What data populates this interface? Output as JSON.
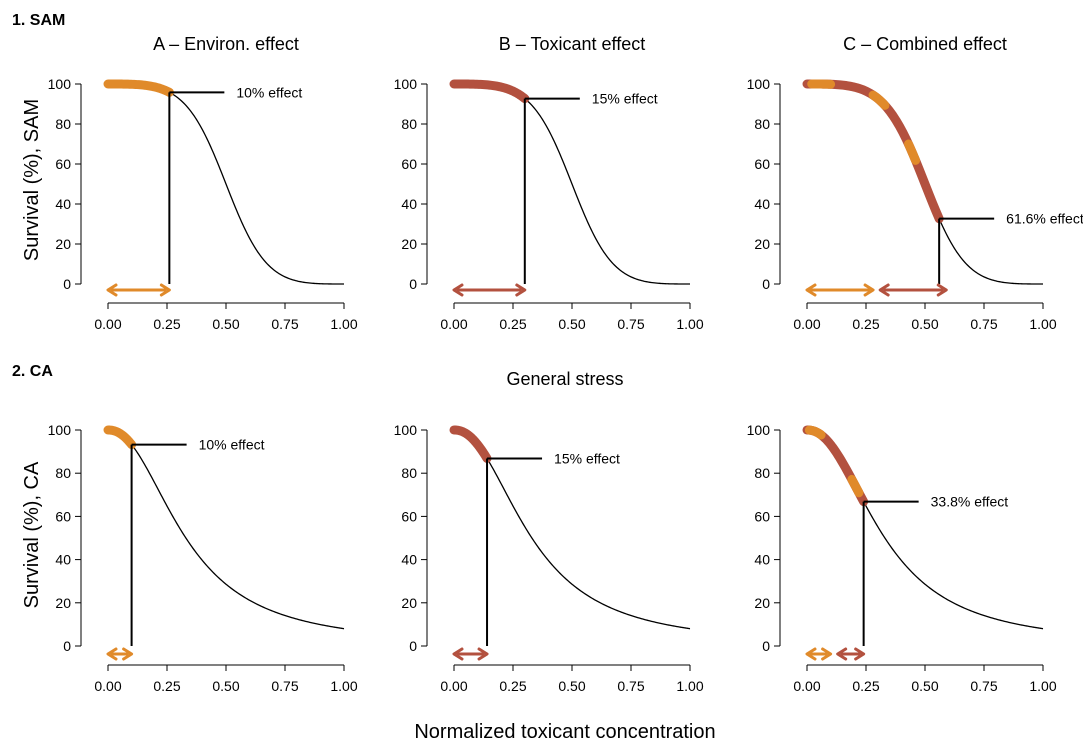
{
  "colors": {
    "env": "#E08A2A",
    "tox": "#B3513F",
    "row_label": "#B3513F",
    "ink": "#000000"
  },
  "figure": {
    "shared_xlabel": "Normalized toxicant concentration",
    "middle_label": "General stress"
  },
  "rows": [
    {
      "label": "1. SAM",
      "ylabel": "Survival (%), SAM"
    },
    {
      "label": "2. CA",
      "ylabel": "Survival (%), CA"
    }
  ],
  "chart_data": [
    {
      "id": "sam-a",
      "type": "line",
      "title": "A – Environ. effect",
      "xlabel": "",
      "ylabel": "Survival (%), SAM",
      "xlim": [
        0,
        1
      ],
      "ylim": [
        0,
        100
      ],
      "x_ticks": [
        "0.00",
        "0.25",
        "0.50",
        "0.75",
        "1.00"
      ],
      "y_ticks": [
        "0",
        "20",
        "40",
        "60",
        "80",
        "100"
      ],
      "curve_model": "sam",
      "x_at_effect": 0.26,
      "effect_label": "10% effect",
      "effect_y": 90,
      "segments": [
        {
          "from": 0,
          "to": 0.26,
          "color": "env"
        }
      ],
      "arrows": [
        {
          "from": 0,
          "to": 0.26,
          "color": "env"
        }
      ]
    },
    {
      "id": "sam-b",
      "type": "line",
      "title": "B – Toxicant effect",
      "xlabel": "",
      "ylabel": "",
      "xlim": [
        0,
        1
      ],
      "ylim": [
        0,
        100
      ],
      "x_ticks": [
        "0.00",
        "0.25",
        "0.50",
        "0.75",
        "1.00"
      ],
      "y_ticks": [
        "0",
        "20",
        "40",
        "60",
        "80",
        "100"
      ],
      "curve_model": "sam",
      "x_at_effect": 0.3,
      "effect_label": "15% effect",
      "effect_y": 85,
      "segments": [
        {
          "from": 0,
          "to": 0.3,
          "color": "tox"
        }
      ],
      "arrows": [
        {
          "from": 0,
          "to": 0.3,
          "color": "tox"
        }
      ]
    },
    {
      "id": "sam-c",
      "type": "line",
      "title": "C – Combined effect",
      "xlabel": "",
      "ylabel": "",
      "xlim": [
        0,
        1
      ],
      "ylim": [
        0,
        100
      ],
      "x_ticks": [
        "0.00",
        "0.25",
        "0.50",
        "0.75",
        "1.00"
      ],
      "y_ticks": [
        "0",
        "20",
        "40",
        "60",
        "80",
        "100"
      ],
      "curve_model": "sam",
      "x_at_effect": 0.56,
      "effect_label": "61.6% effect",
      "effect_y": 38.4,
      "segments": [
        {
          "from": 0,
          "to": 0.56,
          "color": "tox"
        },
        {
          "from": 0.02,
          "to": 0.1,
          "color": "env"
        },
        {
          "from": 0.28,
          "to": 0.33,
          "color": "env"
        },
        {
          "from": 0.43,
          "to": 0.46,
          "color": "env"
        }
      ],
      "arrows": [
        {
          "from": 0,
          "to": 0.28,
          "color": "env"
        },
        {
          "from": 0.31,
          "to": 0.59,
          "color": "tox"
        }
      ]
    },
    {
      "id": "ca-a",
      "type": "line",
      "title": "",
      "xlabel": "",
      "ylabel": "Survival (%), CA",
      "xlim": [
        0,
        1
      ],
      "ylim": [
        0,
        100
      ],
      "x_ticks": [
        "0.00",
        "0.25",
        "0.50",
        "0.75",
        "1.00"
      ],
      "y_ticks": [
        "0",
        "20",
        "40",
        "60",
        "80",
        "100"
      ],
      "curve_model": "ca",
      "x_at_effect": 0.1,
      "effect_label": "10% effect",
      "effect_y": 90,
      "segments": [
        {
          "from": 0,
          "to": 0.1,
          "color": "env"
        }
      ],
      "arrows": [
        {
          "from": 0,
          "to": 0.1,
          "color": "env"
        }
      ]
    },
    {
      "id": "ca-b",
      "type": "line",
      "title": "",
      "xlabel": "",
      "ylabel": "",
      "xlim": [
        0,
        1
      ],
      "ylim": [
        0,
        100
      ],
      "x_ticks": [
        "0.00",
        "0.25",
        "0.50",
        "0.75",
        "1.00"
      ],
      "y_ticks": [
        "0",
        "20",
        "40",
        "60",
        "80",
        "100"
      ],
      "curve_model": "ca",
      "x_at_effect": 0.14,
      "effect_label": "15% effect",
      "effect_y": 85,
      "segments": [
        {
          "from": 0,
          "to": 0.14,
          "color": "tox"
        }
      ],
      "arrows": [
        {
          "from": 0,
          "to": 0.14,
          "color": "tox"
        }
      ]
    },
    {
      "id": "ca-c",
      "type": "line",
      "title": "",
      "xlabel": "",
      "ylabel": "",
      "xlim": [
        0,
        1
      ],
      "ylim": [
        0,
        100
      ],
      "x_ticks": [
        "0.00",
        "0.25",
        "0.50",
        "0.75",
        "1.00"
      ],
      "y_ticks": [
        "0",
        "20",
        "40",
        "60",
        "80",
        "100"
      ],
      "curve_model": "ca",
      "x_at_effect": 0.24,
      "effect_label": "33.8% effect",
      "effect_y": 66.2,
      "segments": [
        {
          "from": 0,
          "to": 0.24,
          "color": "tox"
        },
        {
          "from": 0.01,
          "to": 0.06,
          "color": "env"
        },
        {
          "from": 0.19,
          "to": 0.22,
          "color": "env"
        }
      ],
      "arrows": [
        {
          "from": 0,
          "to": 0.1,
          "color": "env"
        },
        {
          "from": 0.13,
          "to": 0.24,
          "color": "tox"
        }
      ]
    }
  ]
}
